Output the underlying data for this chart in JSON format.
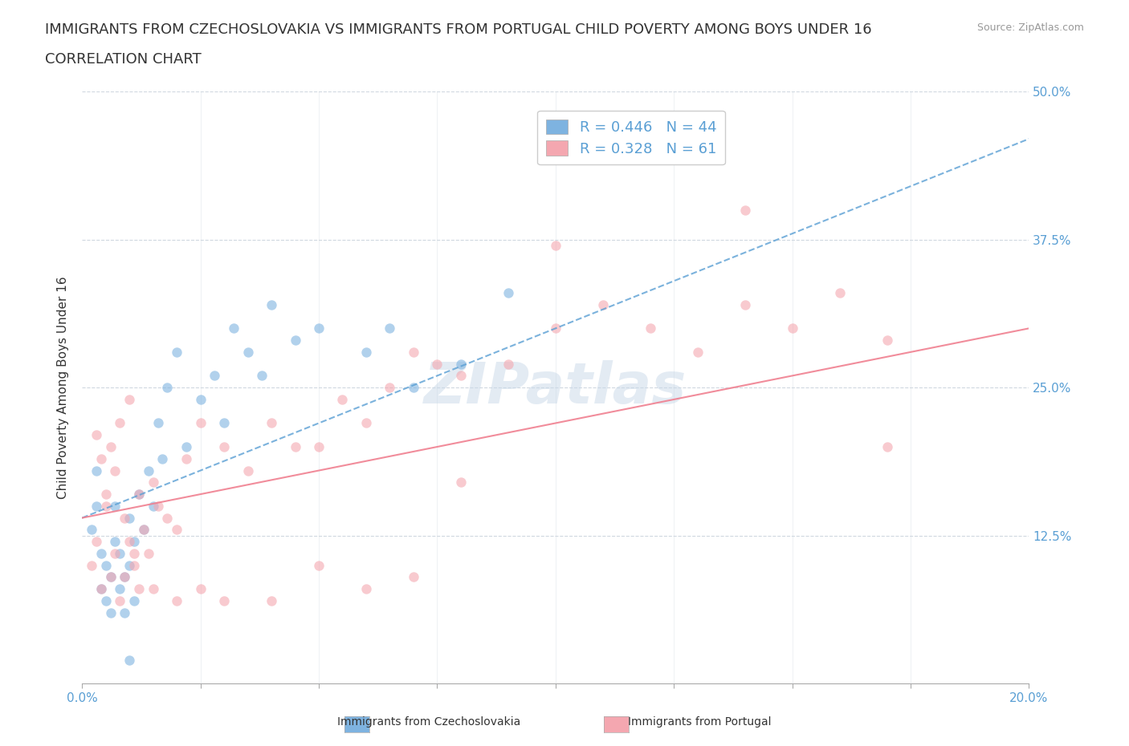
{
  "title_line1": "IMMIGRANTS FROM CZECHOSLOVAKIA VS IMMIGRANTS FROM PORTUGAL CHILD POVERTY AMONG BOYS UNDER 16",
  "title_line2": "CORRELATION CHART",
  "source_text": "Source: ZipAtlas.com",
  "ylabel": "Child Poverty Among Boys Under 16",
  "xlim": [
    0.0,
    0.2
  ],
  "ylim": [
    0.0,
    0.5
  ],
  "xticks": [
    0.0,
    0.025,
    0.05,
    0.075,
    0.1,
    0.125,
    0.15,
    0.175,
    0.2
  ],
  "yticks": [
    0.0,
    0.125,
    0.25,
    0.375,
    0.5
  ],
  "blue_color": "#7eb3e0",
  "pink_color": "#f4a7b0",
  "blue_line_color": "#5a9fd4",
  "pink_line_color": "#f08090",
  "legend_text_color": "#5a9fd4",
  "watermark_color": "#c8d8e8",
  "R_blue": 0.446,
  "N_blue": 44,
  "R_pink": 0.328,
  "N_pink": 61,
  "blue_scatter_x": [
    0.002,
    0.003,
    0.003,
    0.004,
    0.004,
    0.005,
    0.005,
    0.006,
    0.006,
    0.007,
    0.007,
    0.008,
    0.008,
    0.009,
    0.009,
    0.01,
    0.01,
    0.011,
    0.011,
    0.012,
    0.013,
    0.014,
    0.015,
    0.016,
    0.017,
    0.018,
    0.02,
    0.022,
    0.025,
    0.028,
    0.03,
    0.032,
    0.035,
    0.038,
    0.04,
    0.045,
    0.05,
    0.06,
    0.065,
    0.07,
    0.08,
    0.09,
    0.12,
    0.01
  ],
  "blue_scatter_y": [
    0.13,
    0.15,
    0.18,
    0.08,
    0.11,
    0.07,
    0.1,
    0.06,
    0.09,
    0.12,
    0.15,
    0.08,
    0.11,
    0.06,
    0.09,
    0.14,
    0.1,
    0.07,
    0.12,
    0.16,
    0.13,
    0.18,
    0.15,
    0.22,
    0.19,
    0.25,
    0.28,
    0.2,
    0.24,
    0.26,
    0.22,
    0.3,
    0.28,
    0.26,
    0.32,
    0.29,
    0.3,
    0.28,
    0.3,
    0.25,
    0.27,
    0.33,
    0.46,
    0.02
  ],
  "pink_scatter_x": [
    0.002,
    0.003,
    0.004,
    0.005,
    0.006,
    0.007,
    0.008,
    0.009,
    0.01,
    0.011,
    0.012,
    0.013,
    0.014,
    0.015,
    0.016,
    0.018,
    0.02,
    0.022,
    0.025,
    0.03,
    0.035,
    0.04,
    0.045,
    0.05,
    0.055,
    0.06,
    0.065,
    0.07,
    0.075,
    0.08,
    0.09,
    0.1,
    0.11,
    0.12,
    0.13,
    0.14,
    0.15,
    0.16,
    0.17,
    0.003,
    0.004,
    0.005,
    0.006,
    0.007,
    0.008,
    0.009,
    0.01,
    0.011,
    0.012,
    0.015,
    0.02,
    0.025,
    0.03,
    0.04,
    0.05,
    0.06,
    0.07,
    0.08,
    0.1,
    0.14,
    0.17
  ],
  "pink_scatter_y": [
    0.1,
    0.12,
    0.08,
    0.15,
    0.09,
    0.11,
    0.07,
    0.14,
    0.12,
    0.1,
    0.16,
    0.13,
    0.11,
    0.17,
    0.15,
    0.14,
    0.13,
    0.19,
    0.22,
    0.2,
    0.18,
    0.22,
    0.2,
    0.2,
    0.24,
    0.22,
    0.25,
    0.28,
    0.27,
    0.26,
    0.27,
    0.3,
    0.32,
    0.3,
    0.28,
    0.32,
    0.3,
    0.33,
    0.29,
    0.21,
    0.19,
    0.16,
    0.2,
    0.18,
    0.22,
    0.09,
    0.24,
    0.11,
    0.08,
    0.08,
    0.07,
    0.08,
    0.07,
    0.07,
    0.1,
    0.08,
    0.09,
    0.17,
    0.37,
    0.4,
    0.2
  ],
  "blue_trendline_x": [
    0.0,
    0.2
  ],
  "blue_trendline_y": [
    0.14,
    0.46
  ],
  "pink_trendline_x": [
    0.0,
    0.2
  ],
  "pink_trendline_y": [
    0.14,
    0.3
  ],
  "scatter_size": 80,
  "scatter_alpha": 0.6,
  "grid_color": "#d0d8e0",
  "bg_color": "#ffffff",
  "title_fontsize": 13,
  "subtitle_fontsize": 13,
  "axis_fontsize": 11,
  "tick_fontsize": 11
}
